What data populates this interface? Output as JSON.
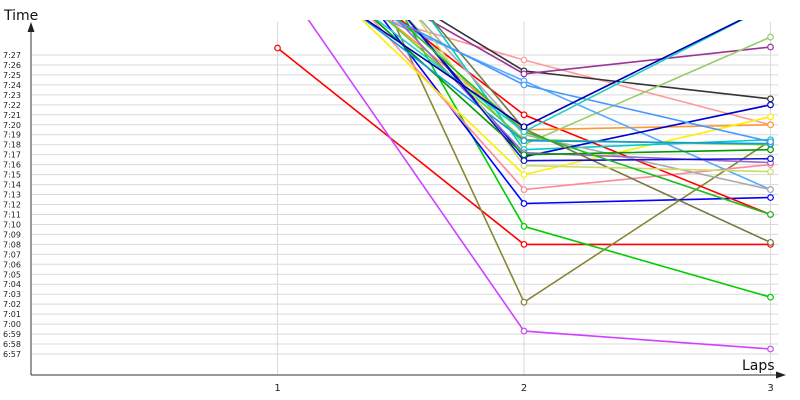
{
  "chart_data": {
    "type": "line",
    "xlabel": "Laps",
    "ylabel": "Time",
    "x": [
      1,
      2,
      3
    ],
    "xlim": [
      0,
      3
    ],
    "ylim_seconds": [
      416,
      448
    ],
    "x_tick_labels": [
      "1",
      "2",
      "3"
    ],
    "y_tick_labels": [
      "6:57",
      "6:58",
      "6:59",
      "7:00",
      "7:01",
      "7:02",
      "7:03",
      "7:04",
      "7:05",
      "7:06",
      "7:07",
      "7:08",
      "7:09",
      "7:10",
      "7:11",
      "7:12",
      "7:13",
      "7:14",
      "7:15",
      "7:16",
      "7:17",
      "7:18",
      "7:19",
      "7:20",
      "7:21",
      "7:22",
      "7:23",
      "7:24",
      "7:25",
      "7:26",
      "7:27"
    ],
    "grid": true,
    "legend": "none",
    "series": [
      {
        "color": "#ff0000",
        "values": [
          447.7,
          428.0,
          428.0
        ]
      },
      {
        "color": "#cc44ff",
        "values": [
          455.0,
          419.3,
          417.5
        ]
      },
      {
        "color": "#00cc00",
        "values": [
          null,
          429.8,
          422.7
        ]
      },
      {
        "color": "#888833",
        "values": [
          null,
          422.2,
          438.4
        ]
      },
      {
        "color": "#0000ff",
        "values": [
          null,
          432.1,
          432.7
        ]
      },
      {
        "color": "#ff8899",
        "values": [
          null,
          433.5,
          436.0
        ]
      },
      {
        "color": "#ff9999",
        "values": [
          null,
          446.5,
          440.0
        ]
      },
      {
        "color": "#333333",
        "values": [
          null,
          445.4,
          442.6
        ]
      },
      {
        "color": "#993399",
        "values": [
          null,
          445.1,
          447.8
        ]
      },
      {
        "color": "#99cc66",
        "values": [
          null,
          438.0,
          448.8
        ]
      },
      {
        "color": "#ff0000",
        "values": [
          null,
          441.0,
          431.0
        ]
      },
      {
        "color": "#ff9933",
        "values": [
          null,
          439.5,
          440.0
        ]
      },
      {
        "color": "#55aaff",
        "values": [
          null,
          444.4,
          433.5
        ]
      },
      {
        "color": "#ffee00",
        "values": [
          null,
          435.0,
          440.8
        ]
      },
      {
        "color": "#00cccc",
        "values": [
          null,
          437.5,
          438.5
        ]
      },
      {
        "color": "#aaaaaa",
        "values": [
          null,
          439.0,
          433.5
        ]
      },
      {
        "color": "#0000cc",
        "values": [
          null,
          436.8,
          442.0
        ]
      },
      {
        "color": "#9966cc",
        "values": [
          null,
          437.2,
          436.2
        ]
      },
      {
        "color": "#66cc33",
        "values": [
          null,
          438.5,
          438.0
        ]
      },
      {
        "color": "#009900",
        "values": [
          null,
          437.0,
          437.5
        ]
      },
      {
        "color": "#1199dd",
        "values": [
          null,
          438.4,
          438.1
        ]
      },
      {
        "color": "#777744",
        "values": [
          null,
          439.6,
          428.2
        ]
      },
      {
        "color": "#ccdd66",
        "values": [
          null,
          435.9,
          435.3
        ]
      },
      {
        "color": "#1111cc",
        "values": [
          null,
          436.4,
          436.6
        ]
      },
      {
        "color": "#22bb22",
        "values": [
          null,
          439.3,
          431.0
        ]
      },
      {
        "color": "#4499ff",
        "values": [
          null,
          444.0,
          438.3
        ]
      },
      {
        "color": "#22cccc",
        "values": [
          null,
          439.3,
          452.0
        ]
      },
      {
        "color": "#0000aa",
        "values": [
          null,
          439.8,
          452.0
        ]
      }
    ]
  }
}
